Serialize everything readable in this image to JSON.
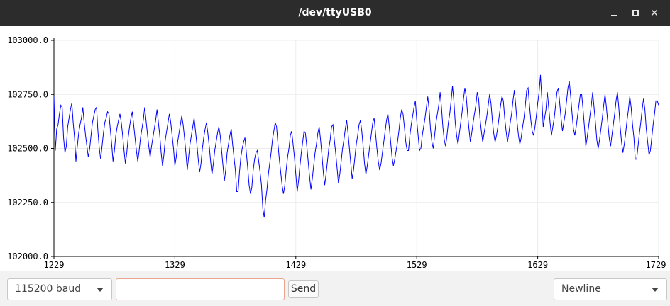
{
  "window": {
    "title": "/dev/ttyUSB0",
    "controls": {
      "minimize": "minimize-icon",
      "maximize": "maximize-icon",
      "close": "close-icon"
    }
  },
  "toolbar": {
    "baud_value": "115200 baud",
    "message_placeholder": "",
    "send_label": "Send",
    "line_ending_value": "Newline"
  },
  "chart_data": {
    "type": "line",
    "xlim": [
      1229,
      1729
    ],
    "ylim": [
      102000.0,
      103000.0
    ],
    "x_ticks": [
      "1229",
      "1329",
      "1429",
      "1529",
      "1629",
      "1729"
    ],
    "y_ticks": [
      "103000.0",
      "102750.0",
      "102500.0",
      "102250.0",
      "102000.0"
    ],
    "grid": true,
    "series_color": "#0000ff",
    "series": [
      {
        "values": [
          102740,
          102490,
          102590,
          102610,
          102660,
          102700,
          102690,
          102550,
          102480,
          102510,
          102600,
          102640,
          102680,
          102710,
          102620,
          102550,
          102440,
          102510,
          102570,
          102610,
          102640,
          102690,
          102620,
          102560,
          102510,
          102460,
          102500,
          102560,
          102620,
          102650,
          102680,
          102690,
          102580,
          102500,
          102450,
          102510,
          102570,
          102620,
          102640,
          102670,
          102660,
          102590,
          102520,
          102440,
          102490,
          102560,
          102600,
          102630,
          102660,
          102620,
          102560,
          102490,
          102430,
          102480,
          102550,
          102600,
          102640,
          102670,
          102610,
          102550,
          102490,
          102440,
          102490,
          102550,
          102590,
          102630,
          102690,
          102630,
          102570,
          102510,
          102460,
          102510,
          102550,
          102590,
          102630,
          102680,
          102620,
          102560,
          102480,
          102420,
          102470,
          102540,
          102580,
          102620,
          102660,
          102620,
          102560,
          102500,
          102420,
          102460,
          102530,
          102570,
          102610,
          102650,
          102610,
          102550,
          102480,
          102400,
          102460,
          102520,
          102560,
          102600,
          102640,
          102580,
          102520,
          102450,
          102390,
          102430,
          102500,
          102550,
          102590,
          102620,
          102570,
          102510,
          102440,
          102380,
          102430,
          102490,
          102530,
          102570,
          102600,
          102560,
          102490,
          102420,
          102350,
          102400,
          102480,
          102520,
          102560,
          102590,
          102520,
          102460,
          102400,
          102300,
          102300,
          102390,
          102460,
          102500,
          102530,
          102550,
          102480,
          102410,
          102330,
          102290,
          102320,
          102400,
          102450,
          102480,
          102490,
          102440,
          102390,
          102330,
          102220,
          102180,
          102260,
          102310,
          102380,
          102430,
          102480,
          102540,
          102580,
          102620,
          102600,
          102520,
          102450,
          102390,
          102330,
          102290,
          102330,
          102400,
          102460,
          102500,
          102560,
          102580,
          102520,
          102460,
          102380,
          102300,
          102350,
          102420,
          102480,
          102530,
          102580,
          102570,
          102510,
          102440,
          102370,
          102310,
          102360,
          102420,
          102480,
          102520,
          102570,
          102600,
          102540,
          102470,
          102390,
          102330,
          102380,
          102440,
          102500,
          102540,
          102600,
          102610,
          102540,
          102480,
          102410,
          102340,
          102380,
          102440,
          102500,
          102540,
          102590,
          102630,
          102570,
          102500,
          102430,
          102360,
          102400,
          102460,
          102520,
          102560,
          102610,
          102630,
          102580,
          102510,
          102430,
          102380,
          102420,
          102470,
          102520,
          102570,
          102620,
          102640,
          102570,
          102500,
          102440,
          102400,
          102430,
          102480,
          102530,
          102580,
          102630,
          102660,
          102600,
          102530,
          102460,
          102420,
          102450,
          102490,
          102530,
          102580,
          102640,
          102680,
          102660,
          102600,
          102530,
          102490,
          102490,
          102560,
          102610,
          102650,
          102690,
          102720,
          102630,
          102560,
          102490,
          102500,
          102560,
          102600,
          102640,
          102690,
          102740,
          102680,
          102590,
          102530,
          102500,
          102560,
          102620,
          102660,
          102700,
          102760,
          102690,
          102600,
          102540,
          102510,
          102560,
          102620,
          102660,
          102720,
          102790,
          102720,
          102620,
          102560,
          102520,
          102570,
          102620,
          102670,
          102730,
          102780,
          102740,
          102660,
          102590,
          102530,
          102570,
          102620,
          102660,
          102700,
          102760,
          102730,
          102640,
          102580,
          102530,
          102570,
          102610,
          102650,
          102700,
          102750,
          102710,
          102630,
          102570,
          102530,
          102560,
          102600,
          102650,
          102700,
          102740,
          102720,
          102640,
          102580,
          102530,
          102570,
          102620,
          102660,
          102720,
          102770,
          102700,
          102620,
          102560,
          102520,
          102550,
          102600,
          102640,
          102700,
          102770,
          102780,
          102700,
          102630,
          102580,
          102560,
          102600,
          102650,
          102710,
          102760,
          102840,
          102730,
          102600,
          102640,
          102680,
          102760,
          102690,
          102620,
          102560,
          102600,
          102640,
          102700,
          102760,
          102780,
          102710,
          102640,
          102580,
          102620,
          102660,
          102720,
          102780,
          102810,
          102740,
          102660,
          102590,
          102560,
          102600,
          102650,
          102700,
          102750,
          102750,
          102680,
          102600,
          102510,
          102550,
          102600,
          102650,
          102700,
          102760,
          102690,
          102620,
          102540,
          102500,
          102540,
          102590,
          102640,
          102700,
          102750,
          102690,
          102620,
          102550,
          102510,
          102560,
          102610,
          102660,
          102720,
          102760,
          102690,
          102600,
          102530,
          102480,
          102520,
          102570,
          102630,
          102680,
          102740,
          102690,
          102610,
          102550,
          102450,
          102450,
          102510,
          102570,
          102620,
          102680,
          102730,
          102680,
          102590,
          102530,
          102470,
          102490,
          102550,
          102610,
          102660,
          102720,
          102720,
          102700
        ]
      }
    ]
  }
}
